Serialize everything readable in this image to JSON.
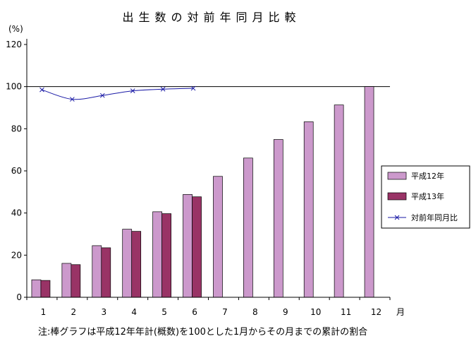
{
  "chart_data": {
    "type": "bar",
    "title": "出生数の対前年同月比較",
    "ylabel": "(%)",
    "xlabel": "月",
    "ylim": [
      0,
      120
    ],
    "yticks": [
      "0",
      "20",
      "40",
      "60",
      "80",
      "100",
      "120"
    ],
    "categories": [
      "1",
      "2",
      "3",
      "4",
      "5",
      "6",
      "7",
      "8",
      "9",
      "10",
      "11",
      "12"
    ],
    "series": [
      {
        "name": "平成12年",
        "type": "bar",
        "color": "#cc99cc",
        "values": [
          8.3,
          16.1,
          24.5,
          32.3,
          40.6,
          48.8,
          57.4,
          66.1,
          74.9,
          83.3,
          91.3,
          100.0
        ]
      },
      {
        "name": "平成13年",
        "type": "bar",
        "color": "#993366",
        "values": [
          8.0,
          15.5,
          23.5,
          31.3,
          39.7,
          47.7,
          null,
          null,
          null,
          null,
          null,
          null
        ]
      },
      {
        "name": "対前年同月比",
        "type": "line",
        "color": "#1a1aa6",
        "marker": "x",
        "values": [
          98.5,
          94.0,
          95.8,
          98.0,
          98.8,
          99.2,
          null,
          null,
          null,
          null,
          null,
          null
        ]
      }
    ],
    "reference_line": 100,
    "legend_position": "right",
    "note": "注:棒グラフは平成12年年計(概数)を100とした1月からその月までの累計の割合"
  }
}
